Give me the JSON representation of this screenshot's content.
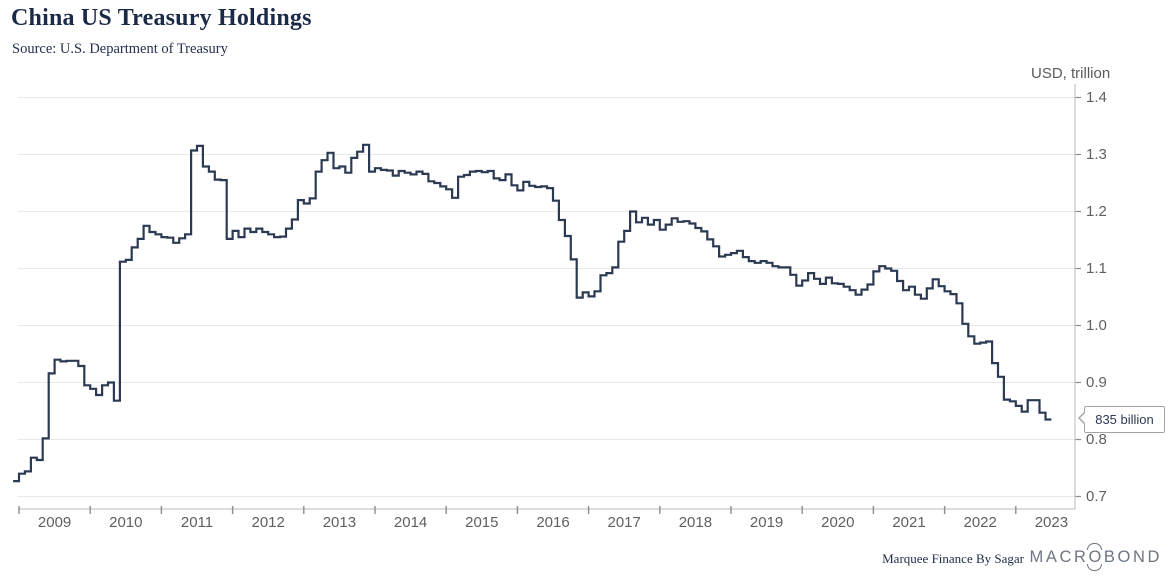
{
  "header": {
    "title": "China US Treasury Holdings",
    "source": "Source: U.S. Department of Treasury"
  },
  "axis": {
    "unit_label": "USD, trillion",
    "y_tick_labels": [
      "0.7",
      "0.8",
      "0.9",
      "1.0",
      "1.1",
      "1.2",
      "1.3",
      "1.4"
    ],
    "x_tick_years": [
      "2009",
      "2010",
      "2011",
      "2012",
      "2013",
      "2014",
      "2015",
      "2016",
      "2017",
      "2018",
      "2019",
      "2020",
      "2021",
      "2022",
      "2023"
    ]
  },
  "callout": {
    "label": "835 billion"
  },
  "footer": {
    "credit": "Marquee Finance By Sagar",
    "logo": "MACROBOND"
  },
  "colors": {
    "line": "#2b3a52",
    "gridline": "#e8e8e8",
    "axis_line": "#c6c6c6",
    "tick": "#8c8c8c",
    "title_text": "#1b2a47",
    "axis_text": "#606060"
  },
  "chart_data": {
    "type": "line",
    "step": true,
    "title": "China US Treasury Holdings",
    "source": "U.S. Department of Treasury",
    "xlabel": "",
    "ylabel": "USD, trillion",
    "ylim": [
      0.7,
      1.4
    ],
    "x_range": [
      "2008-12",
      "2023-06"
    ],
    "grid": true,
    "legend_position": "none",
    "last_value_label": "835 billion",
    "series": [
      {
        "name": "China US Treasury Holdings",
        "frequency": "monthly",
        "start": "2008-12",
        "unit": "USD billion",
        "values": [
          727,
          740,
          744,
          768,
          764,
          802,
          916,
          940,
          937,
          938,
          938,
          929,
          895,
          889,
          878,
          895,
          900,
          868,
          1112,
          1115,
          1137,
          1152,
          1175,
          1164,
          1160,
          1155,
          1154,
          1145,
          1153,
          1160,
          1307,
          1315,
          1279,
          1270,
          1256,
          1255,
          1152,
          1166,
          1155,
          1170,
          1164,
          1170,
          1164,
          1160,
          1155,
          1156,
          1170,
          1186,
          1220,
          1214,
          1223,
          1270,
          1290,
          1303,
          1276,
          1279,
          1268,
          1294,
          1305,
          1317,
          1270,
          1276,
          1273,
          1272,
          1263,
          1271,
          1268,
          1265,
          1270,
          1266,
          1253,
          1250,
          1244,
          1239,
          1224,
          1261,
          1264,
          1270,
          1271,
          1269,
          1271,
          1258,
          1255,
          1265,
          1246,
          1237,
          1252,
          1245,
          1243,
          1244,
          1241,
          1219,
          1185,
          1157,
          1116,
          1049,
          1058,
          1051,
          1060,
          1088,
          1092,
          1102,
          1147,
          1166,
          1200,
          1181,
          1189,
          1177,
          1185,
          1168,
          1177,
          1188,
          1182,
          1183,
          1179,
          1171,
          1165,
          1151,
          1139,
          1121,
          1124,
          1127,
          1131,
          1120,
          1113,
          1110,
          1113,
          1110,
          1104,
          1102,
          1102,
          1089,
          1070,
          1079,
          1092,
          1082,
          1073,
          1084,
          1074,
          1073,
          1068,
          1062,
          1054,
          1063,
          1072,
          1095,
          1104,
          1100,
          1096,
          1078,
          1062,
          1068,
          1054,
          1047,
          1065,
          1081,
          1069,
          1060,
          1055,
          1039,
          1003,
          981,
          968,
          970,
          972,
          934,
          910,
          870,
          867,
          859,
          849,
          869,
          869,
          847,
          835
        ]
      }
    ]
  }
}
